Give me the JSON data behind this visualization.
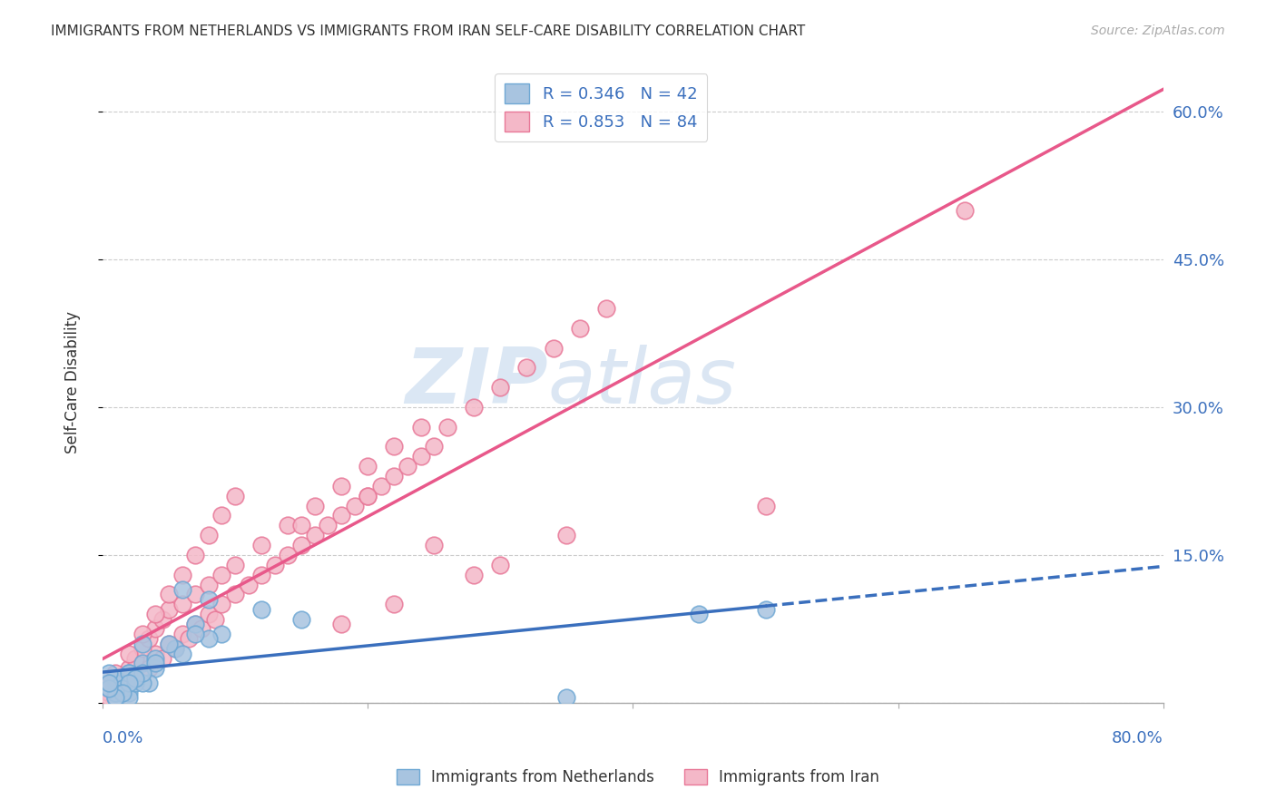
{
  "title": "IMMIGRANTS FROM NETHERLANDS VS IMMIGRANTS FROM IRAN SELF-CARE DISABILITY CORRELATION CHART",
  "source": "Source: ZipAtlas.com",
  "ylabel": "Self-Care Disability",
  "yticks": [
    0.0,
    0.15,
    0.3,
    0.45,
    0.6
  ],
  "ytick_labels": [
    "",
    "15.0%",
    "30.0%",
    "45.0%",
    "60.0%"
  ],
  "xlim": [
    0.0,
    0.8
  ],
  "ylim": [
    0.0,
    0.65
  ],
  "netherlands_color": "#a8c4e0",
  "netherlands_edge": "#6fa8d4",
  "netherlands_line_color": "#3a6fbd",
  "iran_color": "#f4b8c8",
  "iran_edge": "#e87898",
  "iran_line_color": "#e8588a",
  "legend_netherlands_label": "R = 0.346   N = 42",
  "legend_iran_label": "R = 0.853   N = 84",
  "legend_text_color": "#3a6fbd",
  "watermark_zip": "ZIP",
  "watermark_atlas": "atlas",
  "netherlands_scatter_x": [
    0.01,
    0.02,
    0.015,
    0.005,
    0.03,
    0.025,
    0.01,
    0.04,
    0.035,
    0.02,
    0.06,
    0.08,
    0.12,
    0.15,
    0.45,
    0.5,
    0.03,
    0.055,
    0.07,
    0.09,
    0.01,
    0.015,
    0.02,
    0.025,
    0.005,
    0.01,
    0.04,
    0.06,
    0.02,
    0.03,
    0.08,
    0.07,
    0.05,
    0.04,
    0.03,
    0.025,
    0.02,
    0.015,
    0.01,
    0.005,
    0.35,
    0.005
  ],
  "netherlands_scatter_y": [
    0.02,
    0.03,
    0.01,
    0.015,
    0.04,
    0.025,
    0.005,
    0.035,
    0.02,
    0.01,
    0.115,
    0.105,
    0.095,
    0.085,
    0.09,
    0.095,
    0.06,
    0.055,
    0.08,
    0.07,
    0.025,
    0.015,
    0.005,
    0.02,
    0.03,
    0.01,
    0.045,
    0.05,
    0.03,
    0.02,
    0.065,
    0.07,
    0.06,
    0.04,
    0.03,
    0.025,
    0.02,
    0.01,
    0.005,
    0.015,
    0.005,
    0.02
  ],
  "iran_scatter_x": [
    0.005,
    0.01,
    0.015,
    0.02,
    0.025,
    0.03,
    0.035,
    0.04,
    0.045,
    0.05,
    0.055,
    0.06,
    0.065,
    0.07,
    0.075,
    0.08,
    0.085,
    0.09,
    0.1,
    0.11,
    0.12,
    0.13,
    0.14,
    0.15,
    0.16,
    0.17,
    0.18,
    0.19,
    0.2,
    0.21,
    0.22,
    0.23,
    0.24,
    0.25,
    0.26,
    0.28,
    0.3,
    0.32,
    0.34,
    0.36,
    0.38,
    0.005,
    0.01,
    0.015,
    0.02,
    0.025,
    0.03,
    0.035,
    0.04,
    0.045,
    0.05,
    0.06,
    0.07,
    0.08,
    0.09,
    0.1,
    0.12,
    0.14,
    0.16,
    0.18,
    0.2,
    0.22,
    0.24,
    0.005,
    0.01,
    0.02,
    0.03,
    0.04,
    0.05,
    0.06,
    0.07,
    0.08,
    0.09,
    0.1,
    0.15,
    0.2,
    0.25,
    0.3,
    0.65,
    0.5,
    0.35,
    0.28,
    0.22,
    0.18
  ],
  "iran_scatter_y": [
    0.01,
    0.02,
    0.015,
    0.03,
    0.025,
    0.04,
    0.035,
    0.05,
    0.045,
    0.06,
    0.055,
    0.07,
    0.065,
    0.08,
    0.075,
    0.09,
    0.085,
    0.1,
    0.11,
    0.12,
    0.13,
    0.14,
    0.15,
    0.16,
    0.17,
    0.18,
    0.19,
    0.2,
    0.21,
    0.22,
    0.23,
    0.24,
    0.25,
    0.26,
    0.28,
    0.3,
    0.32,
    0.34,
    0.36,
    0.38,
    0.4,
    0.005,
    0.015,
    0.025,
    0.035,
    0.045,
    0.055,
    0.065,
    0.075,
    0.085,
    0.095,
    0.1,
    0.11,
    0.12,
    0.13,
    0.14,
    0.16,
    0.18,
    0.2,
    0.22,
    0.24,
    0.26,
    0.28,
    0.02,
    0.03,
    0.05,
    0.07,
    0.09,
    0.11,
    0.13,
    0.15,
    0.17,
    0.19,
    0.21,
    0.18,
    0.21,
    0.16,
    0.14,
    0.5,
    0.2,
    0.17,
    0.13,
    0.1,
    0.08
  ]
}
